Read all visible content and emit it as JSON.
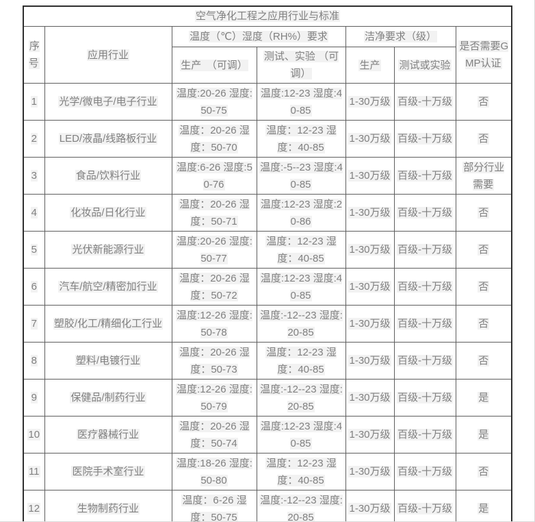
{
  "page": {
    "background": "#ffffff",
    "edge_line_color": "#d9d9d9"
  },
  "table": {
    "title": "空气净化工程之应用行业与标准",
    "text_color": "#808080",
    "inner_border_color": "#5e5e5e",
    "outer_border_color": "#2e2e2e",
    "highlight_color": "#f2f2f2",
    "headers": {
      "no": "序号",
      "industry": "应用行业",
      "temp_humidity_group": "温度（℃）湿度（RH%）要求",
      "production_adjustable": "生产　（可调）",
      "test_adjustable": "测试、实验 （可调）",
      "clean_group": "洁净要求（级）",
      "clean_production": "生产",
      "clean_test": "测试或实验",
      "gmp": "是否需要GMP认证"
    },
    "rows": [
      {
        "no": "1",
        "industry": "光学/微电子/电子行业",
        "prod": "温度:20-26 湿度:50-75",
        "test": "温度:12-23 湿度:40-85",
        "clean_prod": "1-30万级",
        "clean_test": "百级-十万级",
        "gmp": "否"
      },
      {
        "no": "2",
        "industry": "LED/液晶/线路板行业",
        "prod": "温度：20-26 湿度：50-70",
        "test": "温度：12-23 湿度：40-85",
        "clean_prod": "1-30万级",
        "clean_test": "百级-十万级",
        "gmp": "否"
      },
      {
        "no": "3",
        "industry": "食品/饮料行业",
        "prod": "温度:6-26 湿度:50-76",
        "test": "温度:-5--23 湿度:40-85",
        "clean_prod": "1-30万级",
        "clean_test": "百级-十万级",
        "gmp": "部分行业需要"
      },
      {
        "no": "4",
        "industry": "化妆品/日化行业",
        "prod": "温度：20-26 湿度：50-71",
        "test": "温度:12-23 湿度:20-86",
        "clean_prod": "1-30万级",
        "clean_test": "百级-十万级",
        "gmp": "否"
      },
      {
        "no": "5",
        "industry": "光伏新能源行业",
        "prod": "温度:20-26 湿度:50-77",
        "test": "温度：12-23 湿度：40-85",
        "clean_prod": "1-30万级",
        "clean_test": "百级-十万级",
        "gmp": "否"
      },
      {
        "no": "6",
        "industry": "汽车/航空/精密加行业",
        "prod": "温度：20-26 湿度：50-72",
        "test": "温度:12-23 湿度:40-85",
        "clean_prod": "1-30万级",
        "clean_test": "百级-十万级",
        "gmp": "否"
      },
      {
        "no": "7",
        "industry": "塑胶/化工/精细化工行业",
        "prod": "温度:12-26 湿度:50-78",
        "test": "温度:-12--23 湿度:20-85",
        "clean_prod": "1-30万级",
        "clean_test": "百级-十万级",
        "gmp": "否"
      },
      {
        "no": "8",
        "industry": "塑料/电镀行业",
        "prod": "温度：20-26 湿度：50-73",
        "test": "温度：12-23 湿度：40-85",
        "clean_prod": "1-30万级",
        "clean_test": "百级-十万级",
        "gmp": "否"
      },
      {
        "no": "9",
        "industry": "保健品/制药行业",
        "prod": "温度:12-26 湿度:50-79",
        "test": "温度:-12--23 湿度:20-85",
        "clean_prod": "1-30万级",
        "clean_test": "百级-十万级",
        "gmp": "是"
      },
      {
        "no": "10",
        "industry": "医疗器械行业",
        "prod": "温度：20-26 湿度：50-74",
        "test": "温度:12-23 湿度:40-85",
        "clean_prod": "1-30万级",
        "clean_test": "百级-十万级",
        "gmp": "是"
      },
      {
        "no": "11",
        "industry": "医院手术室行业",
        "prod": "温度:18-26 湿度:50-80",
        "test": "温度：12-23 湿度：40-85",
        "clean_prod": "1-30万级",
        "clean_test": "百级-十万级",
        "gmp": "否"
      },
      {
        "no": "12",
        "industry": "生物制药行业",
        "prod": "温度：6-26 湿度：50-75",
        "test": "温度:-12--23 湿度:20-85",
        "clean_prod": "1-30万级",
        "clean_test": "百级-十万级",
        "gmp": "是"
      }
    ]
  }
}
